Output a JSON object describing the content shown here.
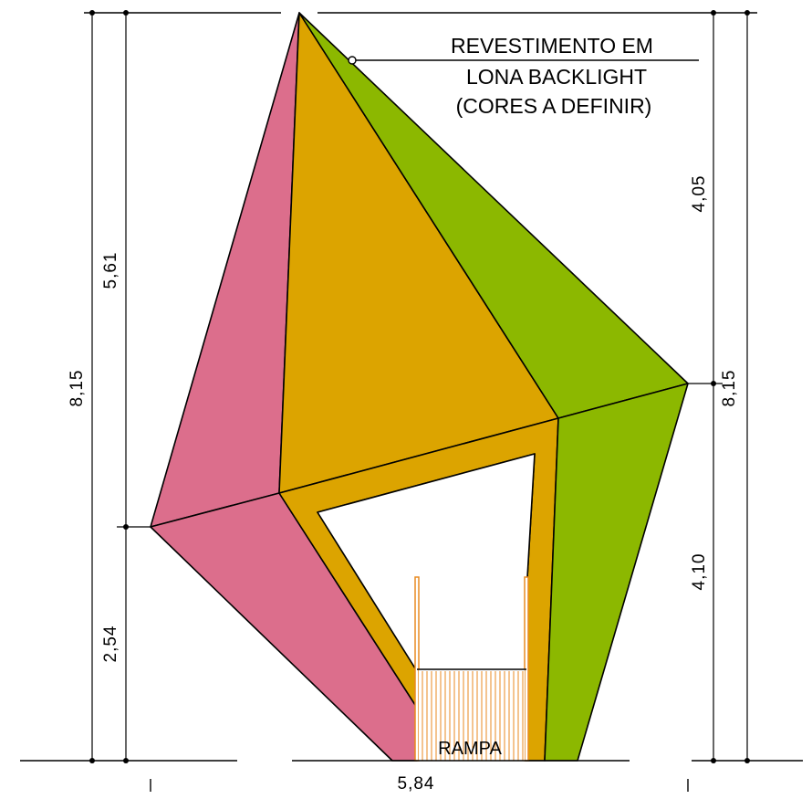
{
  "drawing": {
    "note": [
      "REVESTIMENTO EM",
      "LONA BACKLIGHT",
      "(CORES A DEFINIR)"
    ],
    "ramp_label": "RAMPA",
    "colors": {
      "pink_face": "#dc6e8c",
      "orange_face": "#dca400",
      "green_face": "#8cb800",
      "ramp_lines": "#e88a20",
      "line": "#000000"
    }
  },
  "dimensions": {
    "total_height_left": "8,15",
    "upper_height_left": "5,61",
    "lower_height_left": "2,54",
    "upper_height_right": "4,05",
    "lower_height_right": "4,10",
    "total_height_right": "8,15",
    "base_width": "5,84"
  }
}
